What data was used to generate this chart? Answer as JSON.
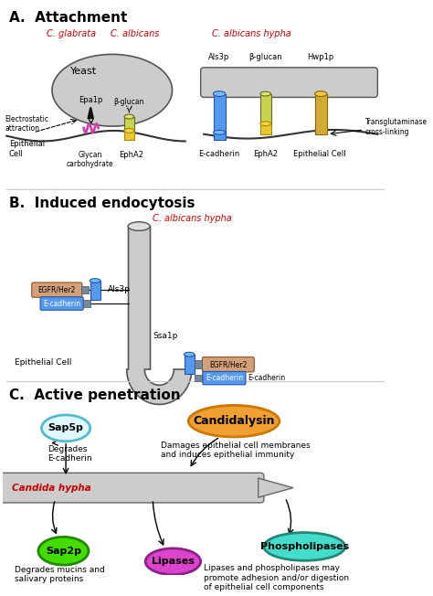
{
  "title_A": "A.  Attachment",
  "title_B": "B.  Induced endocytosis",
  "title_C": "C.  Active penetration",
  "bg_color": "#ffffff",
  "red": "#cc0000",
  "black": "#000000",
  "gray_fill": "#c8c8c8",
  "blue": "#5599ee",
  "yellow_green": "#c8d44d",
  "yellow": "#e8c832",
  "purple_magenta": "#cc44aa",
  "orange": "#f0a030",
  "green": "#44dd00",
  "cyan": "#44ddcc",
  "purple": "#cc44cc",
  "salmon": "#d4956a",
  "section_A": {
    "yeast_label": "Yeast",
    "c_glabrata": "C. glabrata",
    "c_albicans": "C. albicans",
    "epa1p": "Epa1p",
    "beta_glucan_left": "β-glucan",
    "electrostatic": "Electrostatic\nattraction",
    "epithelial_cell_left": "Epithelial\nCell",
    "glycan": "Glycan\ncarbohydrate",
    "epha2_left": "EphA2",
    "c_albicans_hypha": "C. albicans hypha",
    "als3p": "Als3p",
    "beta_glucan_right": "β-glucan",
    "hwp1p": "Hwp1p",
    "transglutaminase": "Transglutaminase\ncross-linking",
    "e_cadherin_right": "E-cadherin",
    "epha2_right": "EphA2",
    "epithelial_cell_right": "Epithelial Cell"
  },
  "section_B": {
    "c_albicans_hypha": "C. albicans hypha",
    "egfr_her2_top": "EGFR/Her2",
    "als3p": "Als3p",
    "e_cadherin_top": "E-cadherin",
    "ssa1p": "Ssa1p",
    "egfr_her2_bottom": "EGFR/Her2",
    "e_cadherin_bottom": "E-cadherin",
    "epithelial_cell": "Epithelial Cell"
  },
  "section_C": {
    "sap5p": "Sap5p",
    "sap5p_text": "Degrades\nE-cadherin",
    "candidalysin": "Candidalysin",
    "candidalysin_text": "Damages epithelial cell membranes\nand induces epithelial immunity",
    "candida_hypha": "Candida hypha",
    "sap2p": "Sap2p",
    "sap2p_text": "Degrades mucins and\nsalivary proteins",
    "lipases": "Lipases",
    "phospholipases": "Phospholipases",
    "lipases_phospholipases_text": "Lipases and phospholipases may\npromote adhesion and/or digestion\nof epithelial cell components"
  }
}
